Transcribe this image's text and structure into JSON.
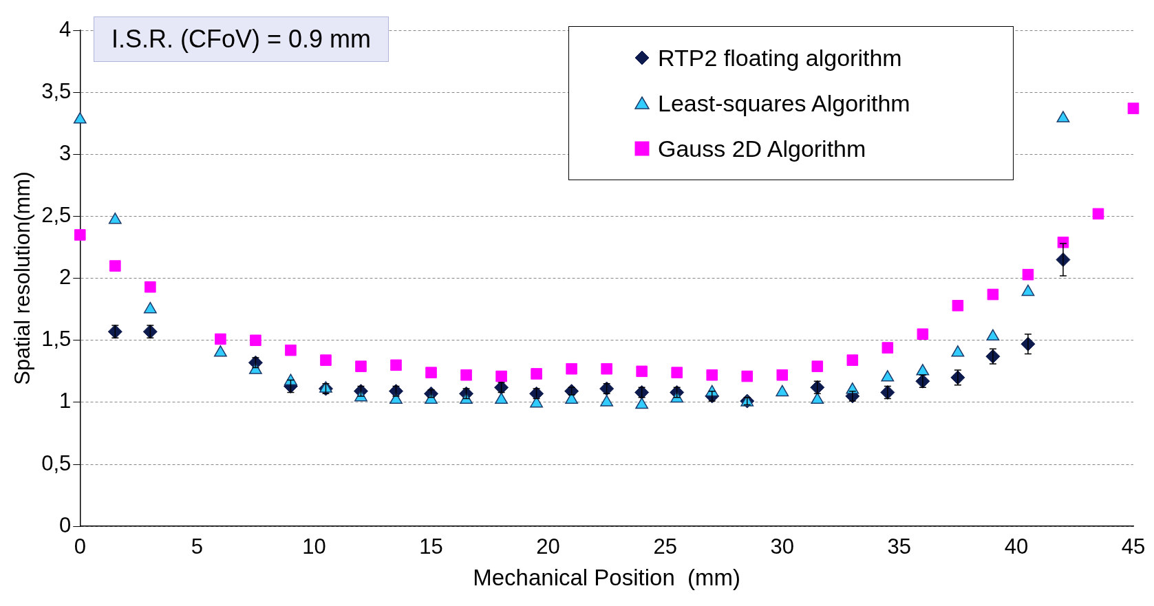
{
  "chart_data": {
    "type": "scatter",
    "xlabel": "Mechanical Position  (mm)",
    "ylabel": "Spatial resolution(mm)",
    "annotations": [
      "I.S.R. (CFoV) = 0.9 mm"
    ],
    "xlim": [
      0,
      45
    ],
    "xticks": [
      0,
      5,
      10,
      15,
      20,
      25,
      30,
      35,
      40,
      45
    ],
    "ylim": [
      0,
      4
    ],
    "yticks": [
      0,
      {
        "value": 0.5,
        "label": "0,5"
      },
      1,
      {
        "value": 1.5,
        "label": "1,5"
      },
      2,
      {
        "value": 2.5,
        "label": "2,5"
      },
      3,
      {
        "value": 3.5,
        "label": "3,5"
      },
      4
    ],
    "grid": "y",
    "legend": "top right",
    "series": [
      {
        "name": "RTP2 floating algorithm",
        "color": "#0d1a4d",
        "marker": "diamond",
        "x": [
          1.5,
          3,
          7.5,
          9,
          10.5,
          12,
          13.5,
          15,
          16.5,
          18,
          19.5,
          21,
          22.5,
          24,
          25.5,
          27,
          28.5,
          31.5,
          33,
          34.5,
          36,
          37.5,
          39,
          40.5,
          42
        ],
        "values": [
          1.57,
          1.57,
          1.32,
          1.13,
          1.11,
          1.09,
          1.09,
          1.07,
          1.07,
          1.12,
          1.07,
          1.09,
          1.11,
          1.08,
          1.08,
          1.05,
          1.01,
          1.12,
          1.05,
          1.08,
          1.17,
          1.2,
          1.37,
          1.47,
          2.15
        ],
        "errors": [
          0.05,
          0.05,
          0.04,
          0.05,
          0.04,
          0.04,
          0.04,
          0.03,
          0.04,
          0.04,
          0.04,
          0.03,
          0.04,
          0.04,
          0.04,
          0.04,
          0.03,
          0.05,
          0.04,
          0.05,
          0.05,
          0.06,
          0.06,
          0.08,
          0.13
        ]
      },
      {
        "name": "Least-squares Algorithm",
        "color": "#33ccff",
        "marker": "triangle",
        "x": [
          0,
          1.5,
          3,
          6,
          7.5,
          9,
          10.5,
          12,
          13.5,
          15,
          16.5,
          18,
          19.5,
          21,
          22.5,
          24,
          25.5,
          27,
          28.5,
          30,
          31.5,
          33,
          34.5,
          36,
          37.5,
          39,
          40.5,
          42
        ],
        "values": [
          3.28,
          2.47,
          1.75,
          1.4,
          1.26,
          1.17,
          1.11,
          1.04,
          1.02,
          1.02,
          1.02,
          1.02,
          0.99,
          1.02,
          1.0,
          0.98,
          1.03,
          1.08,
          1.0,
          1.08,
          1.02,
          1.1,
          1.2,
          1.25,
          1.4,
          1.53,
          1.89,
          3.29
        ]
      },
      {
        "name": "Gauss 2D Algorithm",
        "color": "#ff00ff",
        "marker": "square",
        "x": [
          0,
          1.5,
          3,
          6,
          7.5,
          9,
          10.5,
          12,
          13.5,
          15,
          16.5,
          18,
          19.5,
          21,
          22.5,
          24,
          25.5,
          27,
          28.5,
          30,
          31.5,
          33,
          34.5,
          36,
          37.5,
          39,
          40.5,
          42,
          43.5,
          45
        ],
        "values": [
          2.35,
          2.1,
          1.93,
          1.51,
          1.5,
          1.42,
          1.34,
          1.29,
          1.3,
          1.24,
          1.22,
          1.21,
          1.23,
          1.27,
          1.27,
          1.25,
          1.24,
          1.22,
          1.21,
          1.22,
          1.29,
          1.34,
          1.44,
          1.55,
          1.78,
          1.87,
          2.03,
          2.29,
          2.52,
          3.37
        ]
      }
    ]
  }
}
